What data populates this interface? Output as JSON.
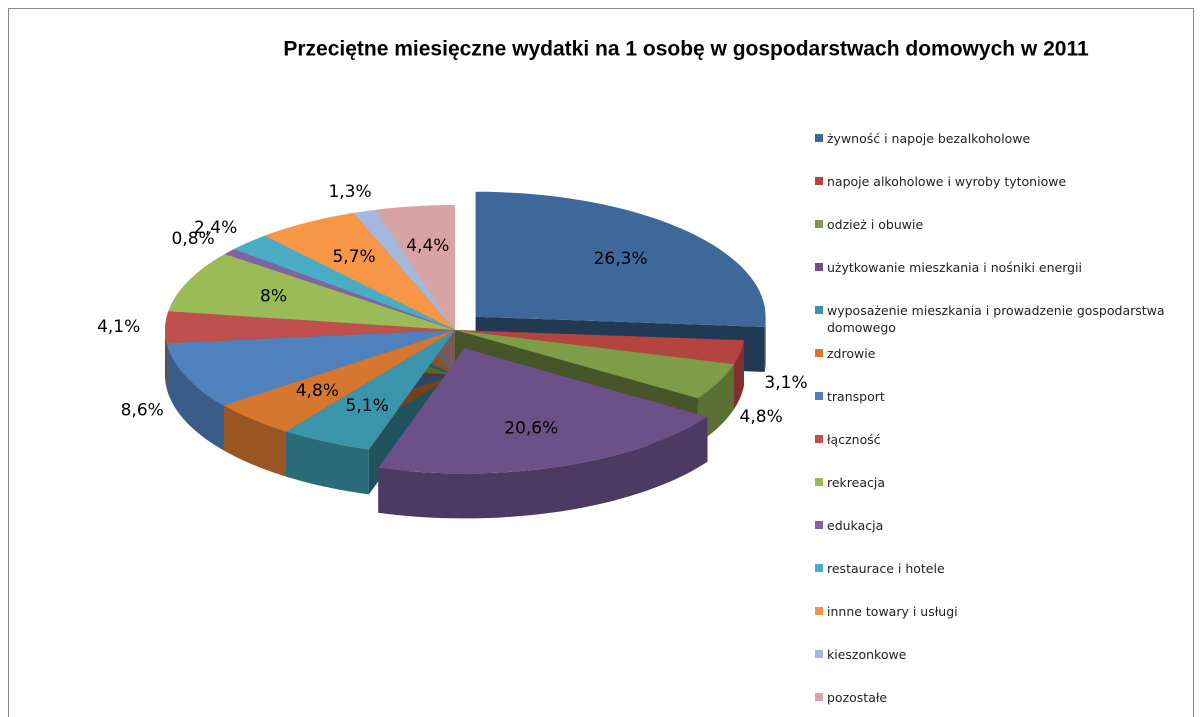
{
  "chart_data": {
    "type": "pie",
    "title": "Przeciętne miesięczne wydatki na 1 osobę w gospodarstwach domowych w 2011",
    "categories": [
      "żywność i napoje bezalkoholowe",
      "napoje alkoholowe i wyroby tytoniowe",
      "odzież i obuwie",
      "użytkowanie mieszkania i nośniki energii",
      "wyposażenie mieszkania i prowadzenie gospodarstwa domowego",
      "zdrowie",
      "transport",
      "łączność",
      "rekreacja",
      "edukacja",
      "restaurace i hotele",
      "innne towary i usługi",
      "kieszonkowe",
      "pozostałe"
    ],
    "values": [
      26.3,
      3.1,
      4.8,
      20.6,
      5.1,
      4.8,
      8.6,
      4.1,
      8,
      0.8,
      2.4,
      5.7,
      1.3,
      4.4
    ],
    "value_labels": [
      "26,3%",
      "3,1%",
      "4,8%",
      "20,6%",
      "5,1%",
      "4,8%",
      "8,6%",
      "4,1%",
      "8%",
      "0,8%",
      "2,4%",
      "5,7%",
      "1,3%",
      "4,4%"
    ],
    "colors": [
      "#3d6899",
      "#b3443f",
      "#7f9d48",
      "#6b5188",
      "#3a95aa",
      "#d5772f",
      "#4f81bd",
      "#c0504d",
      "#9bbb59",
      "#8064a2",
      "#4bacc6",
      "#f79646",
      "#a5b8dc",
      "#d8a4a3"
    ],
    "legend": "right"
  }
}
